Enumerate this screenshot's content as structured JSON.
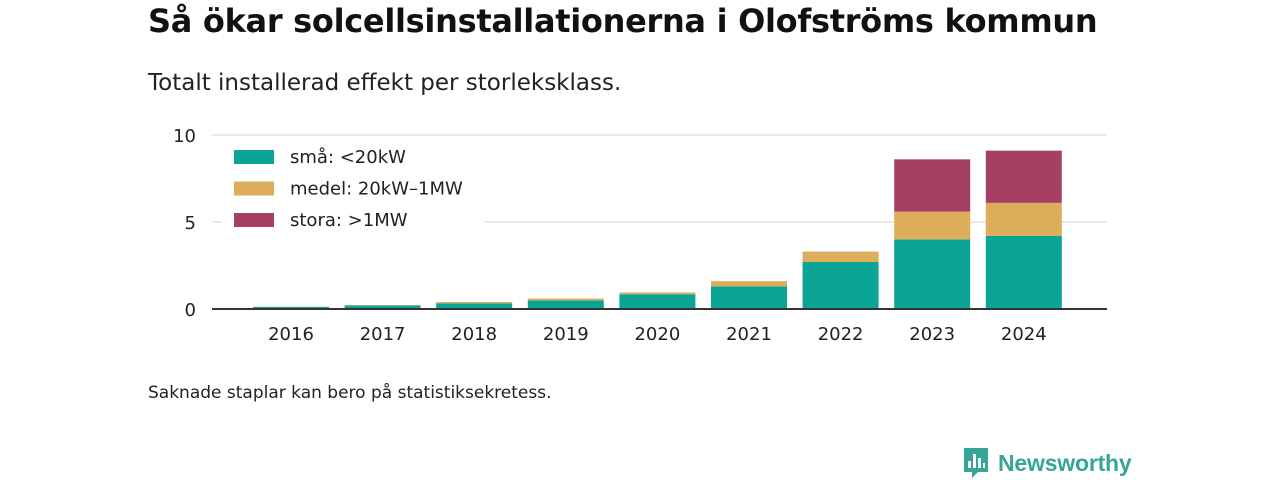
{
  "title": "Så ökar solcellsinstallationerna i Olofströms kommun",
  "subtitle": "Totalt installerad effekt per storleksklass.",
  "footnote": "Saknade staplar kan bero på statistiksekretess.",
  "brand": {
    "name": "Newsworthy",
    "icon": "newsworthy-logo-icon"
  },
  "chart_data": {
    "type": "bar",
    "stacked": true,
    "categories": [
      "2016",
      "2017",
      "2018",
      "2019",
      "2020",
      "2021",
      "2022",
      "2023",
      "2024"
    ],
    "series": [
      {
        "name": "små: <20kW",
        "color": "#0aa595",
        "values": [
          0.12,
          0.2,
          0.32,
          0.5,
          0.85,
          1.3,
          2.7,
          4.0,
          4.2
        ]
      },
      {
        "name": "medel: 20kW–1MW",
        "color": "#dcad5b",
        "values": [
          0.01,
          0.02,
          0.08,
          0.1,
          0.1,
          0.3,
          0.6,
          1.6,
          1.9
        ]
      },
      {
        "name": "stora: >1MW",
        "color": "#a53f63",
        "values": [
          0,
          0,
          0,
          0,
          0,
          0,
          0,
          3.0,
          3.0
        ]
      }
    ],
    "yticks": [
      0,
      5,
      10
    ],
    "ylim": [
      0,
      10
    ],
    "grid": true,
    "legend_position": "top-left"
  }
}
